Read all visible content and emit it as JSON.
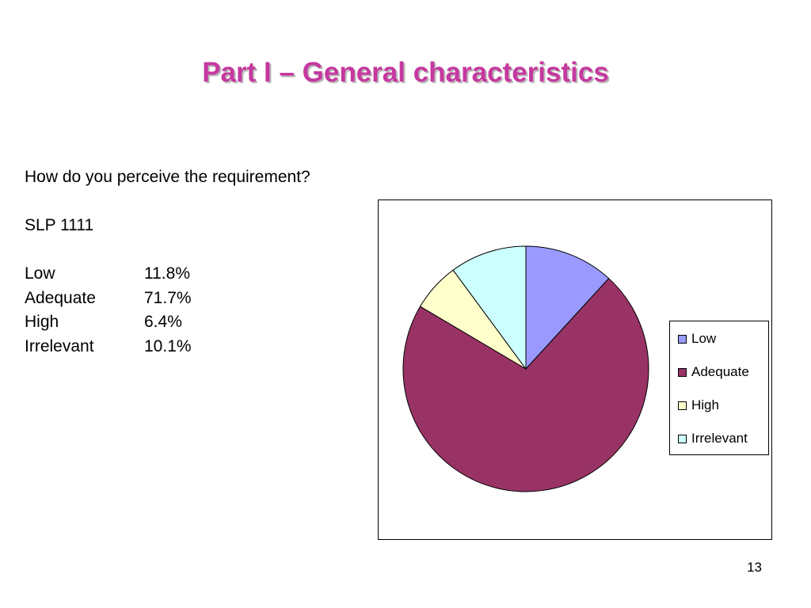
{
  "slide": {
    "title": "Part I – General characteristics",
    "question": "How do you perceive the requirement?",
    "subject": "SLP 1111",
    "stats": [
      {
        "label": "Low",
        "value": "11.8%"
      },
      {
        "label": "Adequate",
        "value": "71.7%"
      },
      {
        "label": "High",
        "value": "6.4%"
      },
      {
        "label": "Irrelevant",
        "value": "10.1%"
      }
    ],
    "page_number": "13"
  },
  "colors": {
    "title": "#c6389f",
    "low": "#9999ff",
    "adequate": "#993366",
    "high": "#ffffcc",
    "irrelevant": "#ccffff"
  },
  "chart_data": {
    "type": "pie",
    "categories": [
      "Low",
      "Adequate",
      "High",
      "Irrelevant"
    ],
    "values": [
      11.8,
      71.7,
      6.4,
      10.1
    ],
    "colors": [
      "#9999ff",
      "#993366",
      "#ffffcc",
      "#ccffff"
    ],
    "title": "",
    "legend": "right",
    "legend_entries": [
      "Low",
      "Adequate",
      "High",
      "Irrelevant"
    ]
  }
}
